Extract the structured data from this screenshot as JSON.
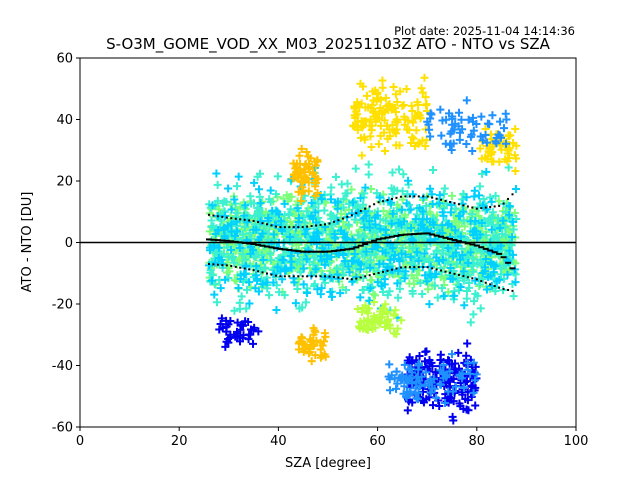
{
  "plot_date_label": "Plot date: 2025-11-04 14:14:36",
  "colors": {
    "zero_line": "#000000",
    "frame": "#000000",
    "scatter_palette": [
      "#0000ee",
      "#1e90ff",
      "#00d0ff",
      "#3cf0d0",
      "#30ffc0",
      "#7cff7a",
      "#b8ff40",
      "#ffe000",
      "#ffc000"
    ]
  },
  "chart_data": {
    "type": "scatter",
    "title": "S-O3M_GOME_VOD_XX_M03_20251103Z ATO - NTO vs SZA",
    "xlabel": "SZA [degree]",
    "ylabel": "ATO - NTO [DU]",
    "xlim": [
      0,
      100
    ],
    "ylim": [
      -60,
      60
    ],
    "x_ticks": [
      0,
      20,
      40,
      60,
      80,
      100
    ],
    "y_ticks": [
      -60,
      -40,
      -20,
      0,
      20,
      40,
      60
    ],
    "grid": false,
    "marker": "+",
    "zero_line_y": 0,
    "x_range_of_points": [
      26,
      88
    ],
    "median_line": {
      "name": "median",
      "x": [
        26,
        30,
        35,
        40,
        45,
        50,
        55,
        60,
        65,
        70,
        75,
        80,
        85,
        88
      ],
      "y": [
        1,
        0.5,
        -0.5,
        -2,
        -3,
        -3,
        -2,
        1,
        2.5,
        3,
        1,
        -1,
        -4,
        -10
      ]
    },
    "upper_percentile_line": {
      "name": "upper percentile",
      "x": [
        26,
        30,
        35,
        40,
        45,
        50,
        55,
        60,
        65,
        70,
        75,
        80,
        85,
        88
      ],
      "y": [
        9,
        8,
        7,
        5,
        5,
        6,
        9,
        13,
        15,
        15,
        13,
        11,
        12,
        17
      ]
    },
    "lower_percentile_line": {
      "name": "lower percentile",
      "x": [
        26,
        30,
        35,
        40,
        45,
        50,
        55,
        60,
        65,
        70,
        75,
        80,
        85,
        88
      ],
      "y": [
        -7,
        -7.5,
        -9,
        -11,
        -11,
        -11,
        -12,
        -10,
        -8,
        -8,
        -10,
        -12,
        -15,
        -16
      ]
    },
    "scatter_clusters": [
      {
        "x": [
          26,
          88
        ],
        "y": [
          -20,
          20
        ],
        "color_index": 5,
        "n": 900
      },
      {
        "x": [
          26,
          88
        ],
        "y": [
          -30,
          30
        ],
        "color_index": 3,
        "n": 700
      },
      {
        "x": [
          26,
          88
        ],
        "y": [
          -28,
          28
        ],
        "color_index": 2,
        "n": 400
      },
      {
        "x": [
          55,
          70
        ],
        "y": [
          25,
          57
        ],
        "color_index": 7,
        "n": 140
      },
      {
        "x": [
          43,
          48
        ],
        "y": [
          10,
          34
        ],
        "color_index": 8,
        "n": 60
      },
      {
        "x": [
          80,
          88
        ],
        "y": [
          20,
          42
        ],
        "color_index": 7,
        "n": 50
      },
      {
        "x": [
          66,
          80
        ],
        "y": [
          -60,
          -30
        ],
        "color_index": 0,
        "n": 180
      },
      {
        "x": [
          28,
          36
        ],
        "y": [
          -37,
          -22
        ],
        "color_index": 0,
        "n": 40
      },
      {
        "x": [
          44,
          50
        ],
        "y": [
          -40,
          -25
        ],
        "color_index": 8,
        "n": 40
      },
      {
        "x": [
          56,
          65
        ],
        "y": [
          -32,
          -18
        ],
        "color_index": 6,
        "n": 60
      },
      {
        "x": [
          70,
          86
        ],
        "y": [
          25,
          48
        ],
        "color_index": 1,
        "n": 60
      },
      {
        "x": [
          62,
          80
        ],
        "y": [
          -55,
          -35
        ],
        "color_index": 1,
        "n": 90
      }
    ]
  }
}
